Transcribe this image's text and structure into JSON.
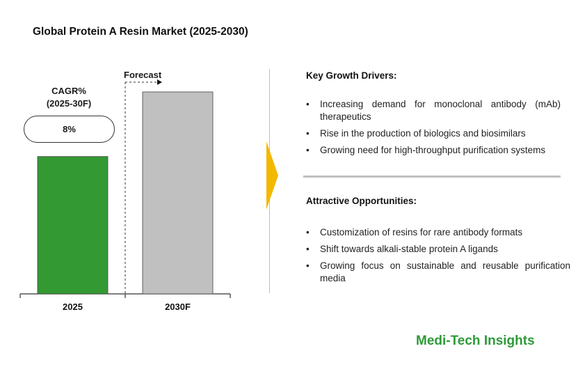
{
  "title": "Global Protein A Resin Market (2025-2030)",
  "cagr": {
    "label_line1": "CAGR%",
    "label_line2": "(2025-30F)",
    "value": "8%"
  },
  "forecast_label": "Forecast",
  "chart_data": {
    "type": "bar",
    "categories": [
      "2025",
      "2030F"
    ],
    "values": [
      1.0,
      1.47
    ],
    "colors": [
      "#339933",
      "#c0c0c0"
    ],
    "forecast_from": "2030F",
    "grid": false
  },
  "key_drivers": {
    "heading": "Key Growth Drivers:",
    "items": [
      "Increasing demand for monoclonal antibody (mAb) therapeutics",
      "Rise in the production of biologics and biosimilars",
      "Growing need for high-throughput purification systems"
    ]
  },
  "opportunities": {
    "heading": "Attractive Opportunities:",
    "items": [
      "Customization of resins for rare antibody formats",
      "Shift towards alkali-stable protein A ligands",
      "Growing focus on sustainable and reusable purification media"
    ]
  },
  "brand": "Medi-Tech Insights",
  "colors": {
    "accent_arrow": "#f3b800",
    "brand": "#2e9a38"
  }
}
